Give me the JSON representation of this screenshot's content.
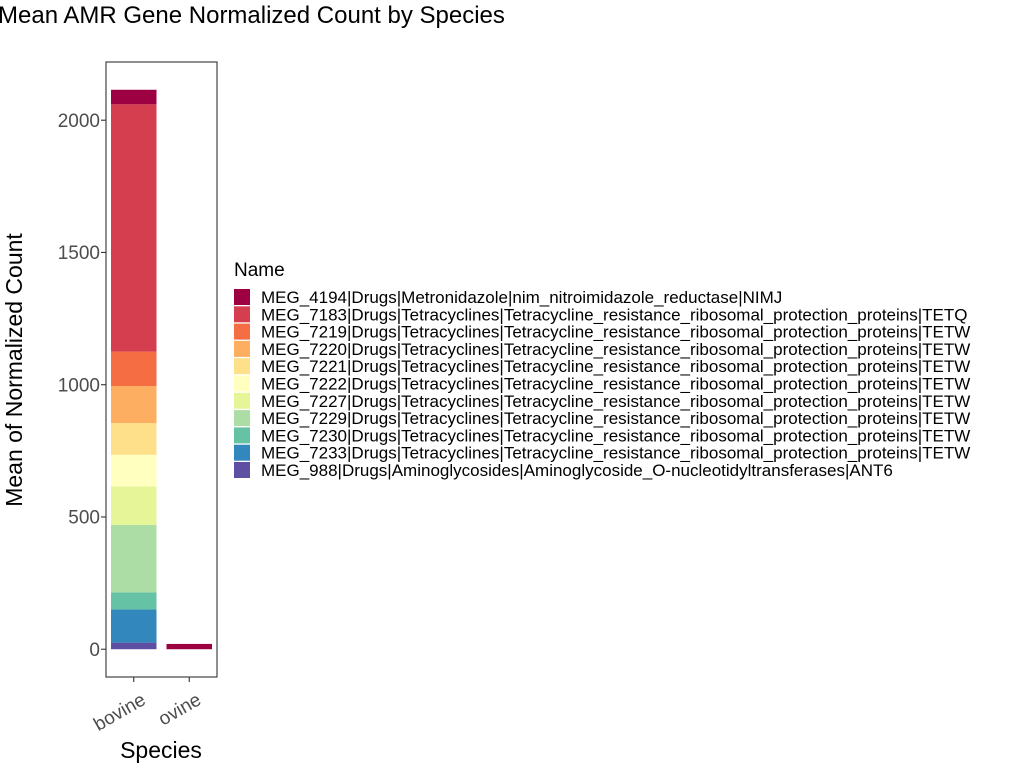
{
  "chart_data": {
    "type": "bar",
    "stacked": true,
    "title": "Mean AMR Gene Normalized Count by Species",
    "xlabel": "Species",
    "ylabel": "Mean of Normalized Count",
    "categories": [
      "bovine",
      "ovine"
    ],
    "ylim": [
      -105,
      2220
    ],
    "yticks": [
      0,
      500,
      1000,
      1500,
      2000
    ],
    "legend": {
      "title": "Name",
      "placement": "right"
    },
    "grid": false,
    "series": [
      {
        "name": "MEG_988|Drugs|Aminoglycosides|Aminoglycoside_O-nucleotidyltransferases|ANT6",
        "color": "#5E4FA2",
        "values": [
          25,
          0
        ]
      },
      {
        "name": "MEG_7233|Drugs|Tetracyclines|Tetracycline_resistance_ribosomal_protection_proteins|TETW",
        "color": "#3288BD",
        "values": [
          125,
          0
        ]
      },
      {
        "name": "MEG_7230|Drugs|Tetracyclines|Tetracycline_resistance_ribosomal_protection_proteins|TETW",
        "color": "#66C2A5",
        "values": [
          65,
          0
        ]
      },
      {
        "name": "MEG_7229|Drugs|Tetracyclines|Tetracycline_resistance_ribosomal_protection_proteins|TETW",
        "color": "#ABDDA4",
        "values": [
          255,
          0
        ]
      },
      {
        "name": "MEG_7227|Drugs|Tetracyclines|Tetracycline_resistance_ribosomal_protection_proteins|TETW",
        "color": "#E6F598",
        "values": [
          145,
          0
        ]
      },
      {
        "name": "MEG_7222|Drugs|Tetracyclines|Tetracycline_resistance_ribosomal_protection_proteins|TETW",
        "color": "#FFFFBF",
        "values": [
          120,
          0
        ]
      },
      {
        "name": "MEG_7221|Drugs|Tetracyclines|Tetracycline_resistance_ribosomal_protection_proteins|TETW",
        "color": "#FEE08B",
        "values": [
          120,
          0
        ]
      },
      {
        "name": "MEG_7220|Drugs|Tetracyclines|Tetracycline_resistance_ribosomal_protection_proteins|TETW",
        "color": "#FDAE61",
        "values": [
          140,
          0
        ]
      },
      {
        "name": "MEG_7219|Drugs|Tetracyclines|Tetracycline_resistance_ribosomal_protection_proteins|TETW",
        "color": "#F46D43",
        "values": [
          130,
          0
        ]
      },
      {
        "name": "MEG_7183|Drugs|Tetracyclines|Tetracycline_resistance_ribosomal_protection_proteins|TETQ",
        "color": "#D53E4F",
        "values": [
          935,
          0
        ]
      },
      {
        "name": "MEG_4194|Drugs|Metronidazole|nim_nitroimidazole_reductase|NIMJ",
        "color": "#9E0142",
        "values": [
          55,
          20
        ]
      }
    ],
    "legend_order": [
      10,
      9,
      8,
      7,
      6,
      5,
      4,
      3,
      2,
      1,
      0
    ]
  }
}
